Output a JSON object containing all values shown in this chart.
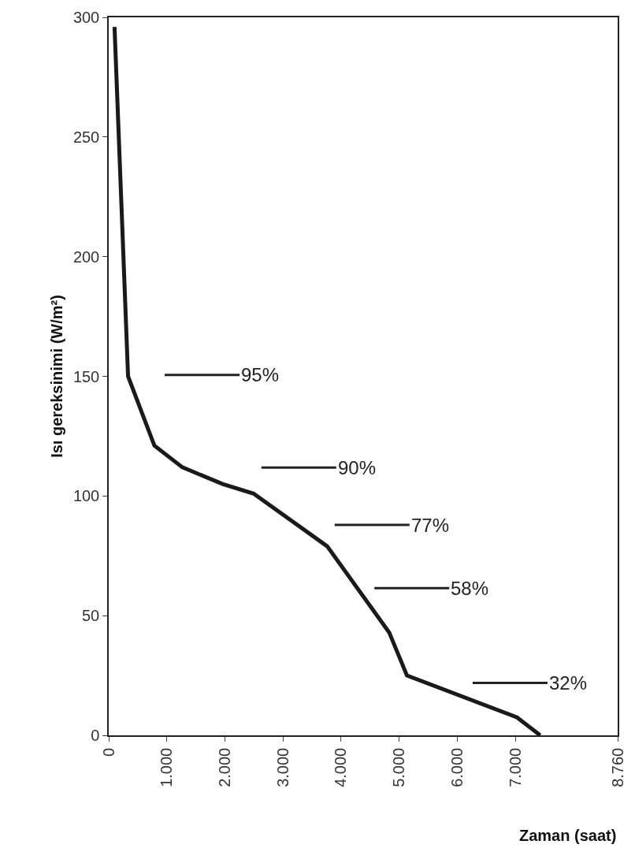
{
  "chart_data": {
    "type": "line",
    "xlabel": "Zaman (saat)",
    "ylabel": "Isı gereksinimi (W/m²)",
    "x": [
      100,
      333,
      787,
      1267,
      1960,
      2493,
      3760,
      4827,
      5133,
      7027,
      7427
    ],
    "values": [
      296,
      150,
      121,
      112,
      105,
      101,
      79,
      43,
      25,
      7.5,
      0
    ],
    "color": "#1a1a1a",
    "marker": "none",
    "line_style": "solid",
    "xlim": [
      0,
      8760
    ],
    "xticks": [
      0,
      {
        "value": 1000,
        "label": "1.000"
      },
      {
        "value": 2000,
        "label": "2.000"
      },
      {
        "value": 3000,
        "label": "3.000"
      },
      {
        "value": 4000,
        "label": "4.000"
      },
      {
        "value": 5000,
        "label": "5.000"
      },
      {
        "value": 6000,
        "label": "6.000"
      },
      {
        "value": 7000,
        "label": "7.000"
      },
      {
        "value": 8760,
        "label": "8.760"
      }
    ],
    "ylim": [
      0,
      300
    ],
    "yticks": [
      0,
      50,
      100,
      150,
      200,
      250,
      300
    ],
    "annotations": [
      "95%",
      "90%",
      "77%",
      "58%",
      "32%"
    ]
  }
}
